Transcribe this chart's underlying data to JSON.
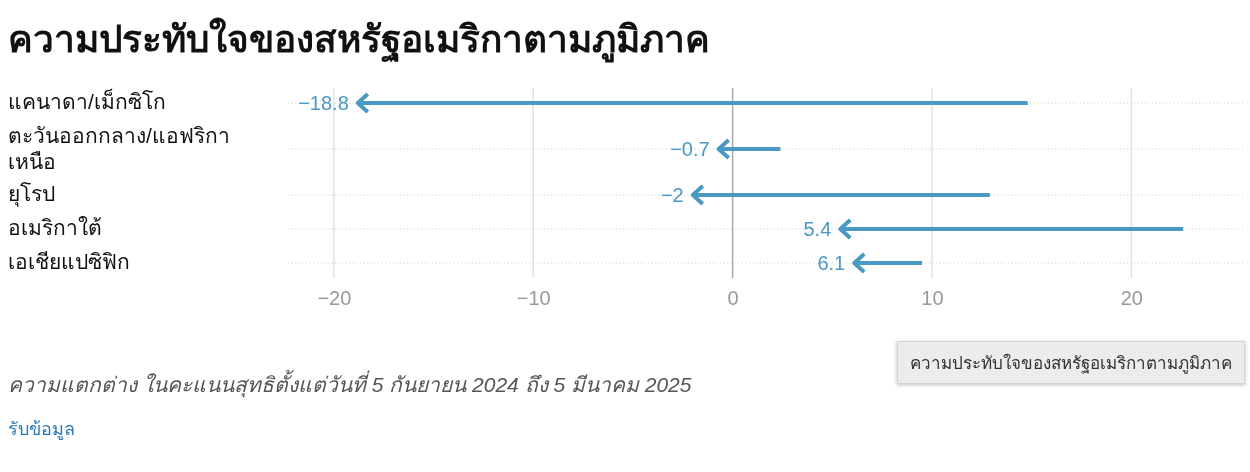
{
  "chart_data": {
    "type": "bar",
    "orientation": "horizontal",
    "title": "ความประทับใจของสหรัฐอเมริกาตามภูมิภาค",
    "categories": [
      "แคนาดา/เม็กซิโก",
      "ตะวันออกกลาง/แอฟริกาเหนือ",
      "ยุโรป",
      "อเมริกาใต้",
      "เอเชียแปซิฟิก"
    ],
    "base": [
      14.8,
      2.4,
      12.9,
      22.6,
      9.5
    ],
    "values": [
      -33.6,
      -3.1,
      -14.9,
      -17.2,
      -3.4
    ],
    "value_labels": [
      "−18.8",
      "−0.7",
      "−2",
      "5.4",
      "6.1"
    ],
    "color": "#4a98c4",
    "xlim": [
      -22.3,
      25.7
    ],
    "xticks": [
      {
        "value": -20,
        "label": "−20"
      },
      {
        "value": -10,
        "label": "−10"
      },
      0,
      10,
      20
    ],
    "grid": true,
    "annotations": [
      "ความแตกต่าง ในคะแนนสุทธิตั้งแต่วันที่ 5 กันยายน 2024 ถึง 5 มีนาคม 2025",
      "รับข้อมูล",
      "ความประทับใจของสหรัฐอเมริกาตามภูมิภาค"
    ]
  }
}
